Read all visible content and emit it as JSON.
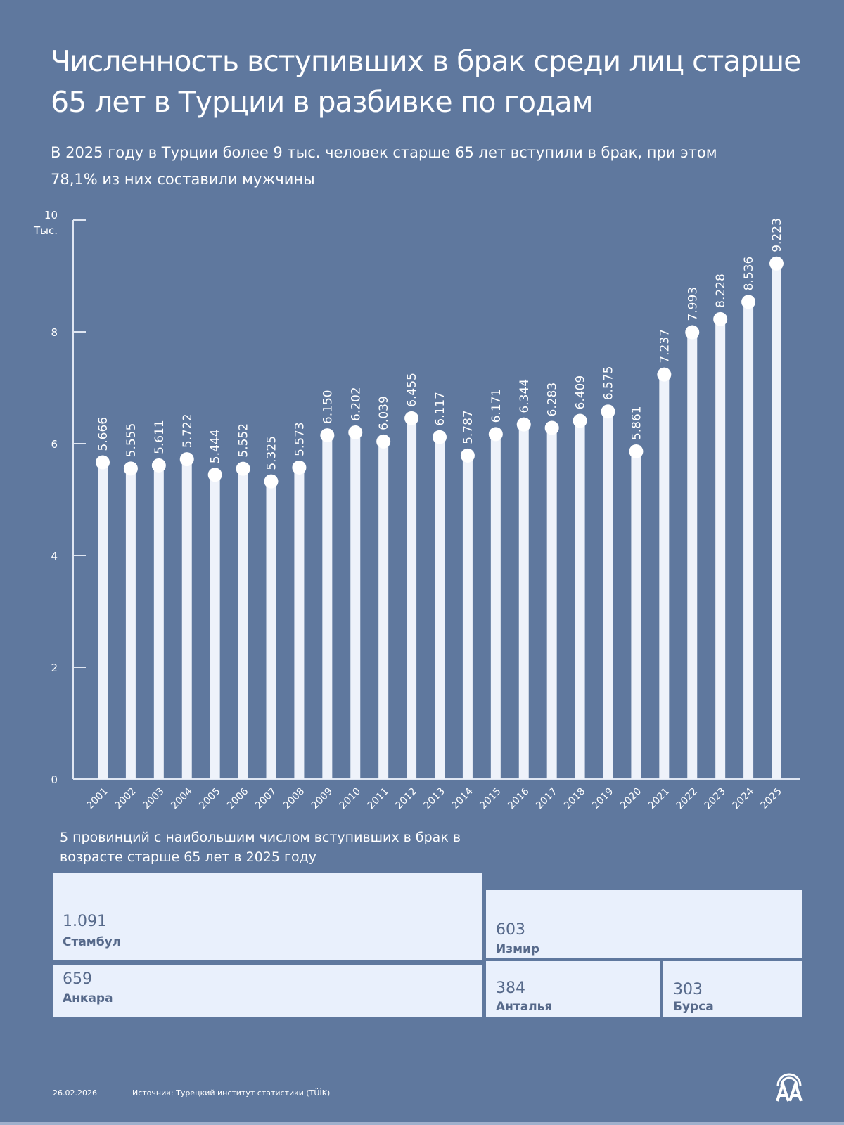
{
  "title": "Численность вступивших в брак среди лиц старше 65 лет в Турции в разбивке по годам",
  "subtitle": "В 2025 году в Турции более 9 тыс. человек старше 65 лет вступили в брак, при этом 78,1% из них составили мужчины",
  "chart_data": {
    "type": "bar",
    "ylabel": "Тыс.",
    "ylim": [
      0,
      10
    ],
    "yticks": [
      0,
      2,
      4,
      6,
      8,
      10
    ],
    "grid": false,
    "categories": [
      "2001",
      "2002",
      "2003",
      "2004",
      "2005",
      "2006",
      "2007",
      "2008",
      "2009",
      "2010",
      "2011",
      "2012",
      "2013",
      "2014",
      "2015",
      "2016",
      "2017",
      "2018",
      "2019",
      "2020",
      "2021",
      "2022",
      "2023",
      "2024",
      "2025"
    ],
    "values": [
      5.666,
      5.555,
      5.611,
      5.722,
      5.444,
      5.552,
      5.325,
      5.573,
      6.15,
      6.202,
      6.039,
      6.455,
      6.117,
      5.787,
      6.171,
      6.344,
      6.283,
      6.409,
      6.575,
      5.861,
      7.237,
      7.993,
      8.228,
      8.536,
      9.223
    ],
    "data_labels": [
      "5.666",
      "5.555",
      "5.611",
      "5.722",
      "5.444",
      "5.552",
      "5.325",
      "5.573",
      "6.150",
      "6.202",
      "6.039",
      "6.455",
      "6.117",
      "5.787",
      "6.171",
      "6.344",
      "6.283",
      "6.409",
      "6.575",
      "5.861",
      "7.237",
      "7.993",
      "8.228",
      "8.536",
      "9.223"
    ],
    "bar_color": "#eef2fa"
  },
  "treemap": {
    "title": "5 провинций с наибольшим числом вступивших в брак в возрасте старше 65 лет в 2025 году",
    "items": [
      {
        "value": "1.091",
        "name": "Стамбул"
      },
      {
        "value": "659",
        "name": "Анкара"
      },
      {
        "value": "603",
        "name": "Измир"
      },
      {
        "value": "384",
        "name": "Анталья"
      },
      {
        "value": "303",
        "name": "Бурса"
      }
    ]
  },
  "footer": {
    "date": "26.02.2026",
    "source": "Источник: Турецкий институт статистики (TÜİK)",
    "logo": "AA"
  },
  "colors": {
    "background": "#5f789e",
    "box": "#e9f0fc",
    "box_text": "#56698a"
  }
}
